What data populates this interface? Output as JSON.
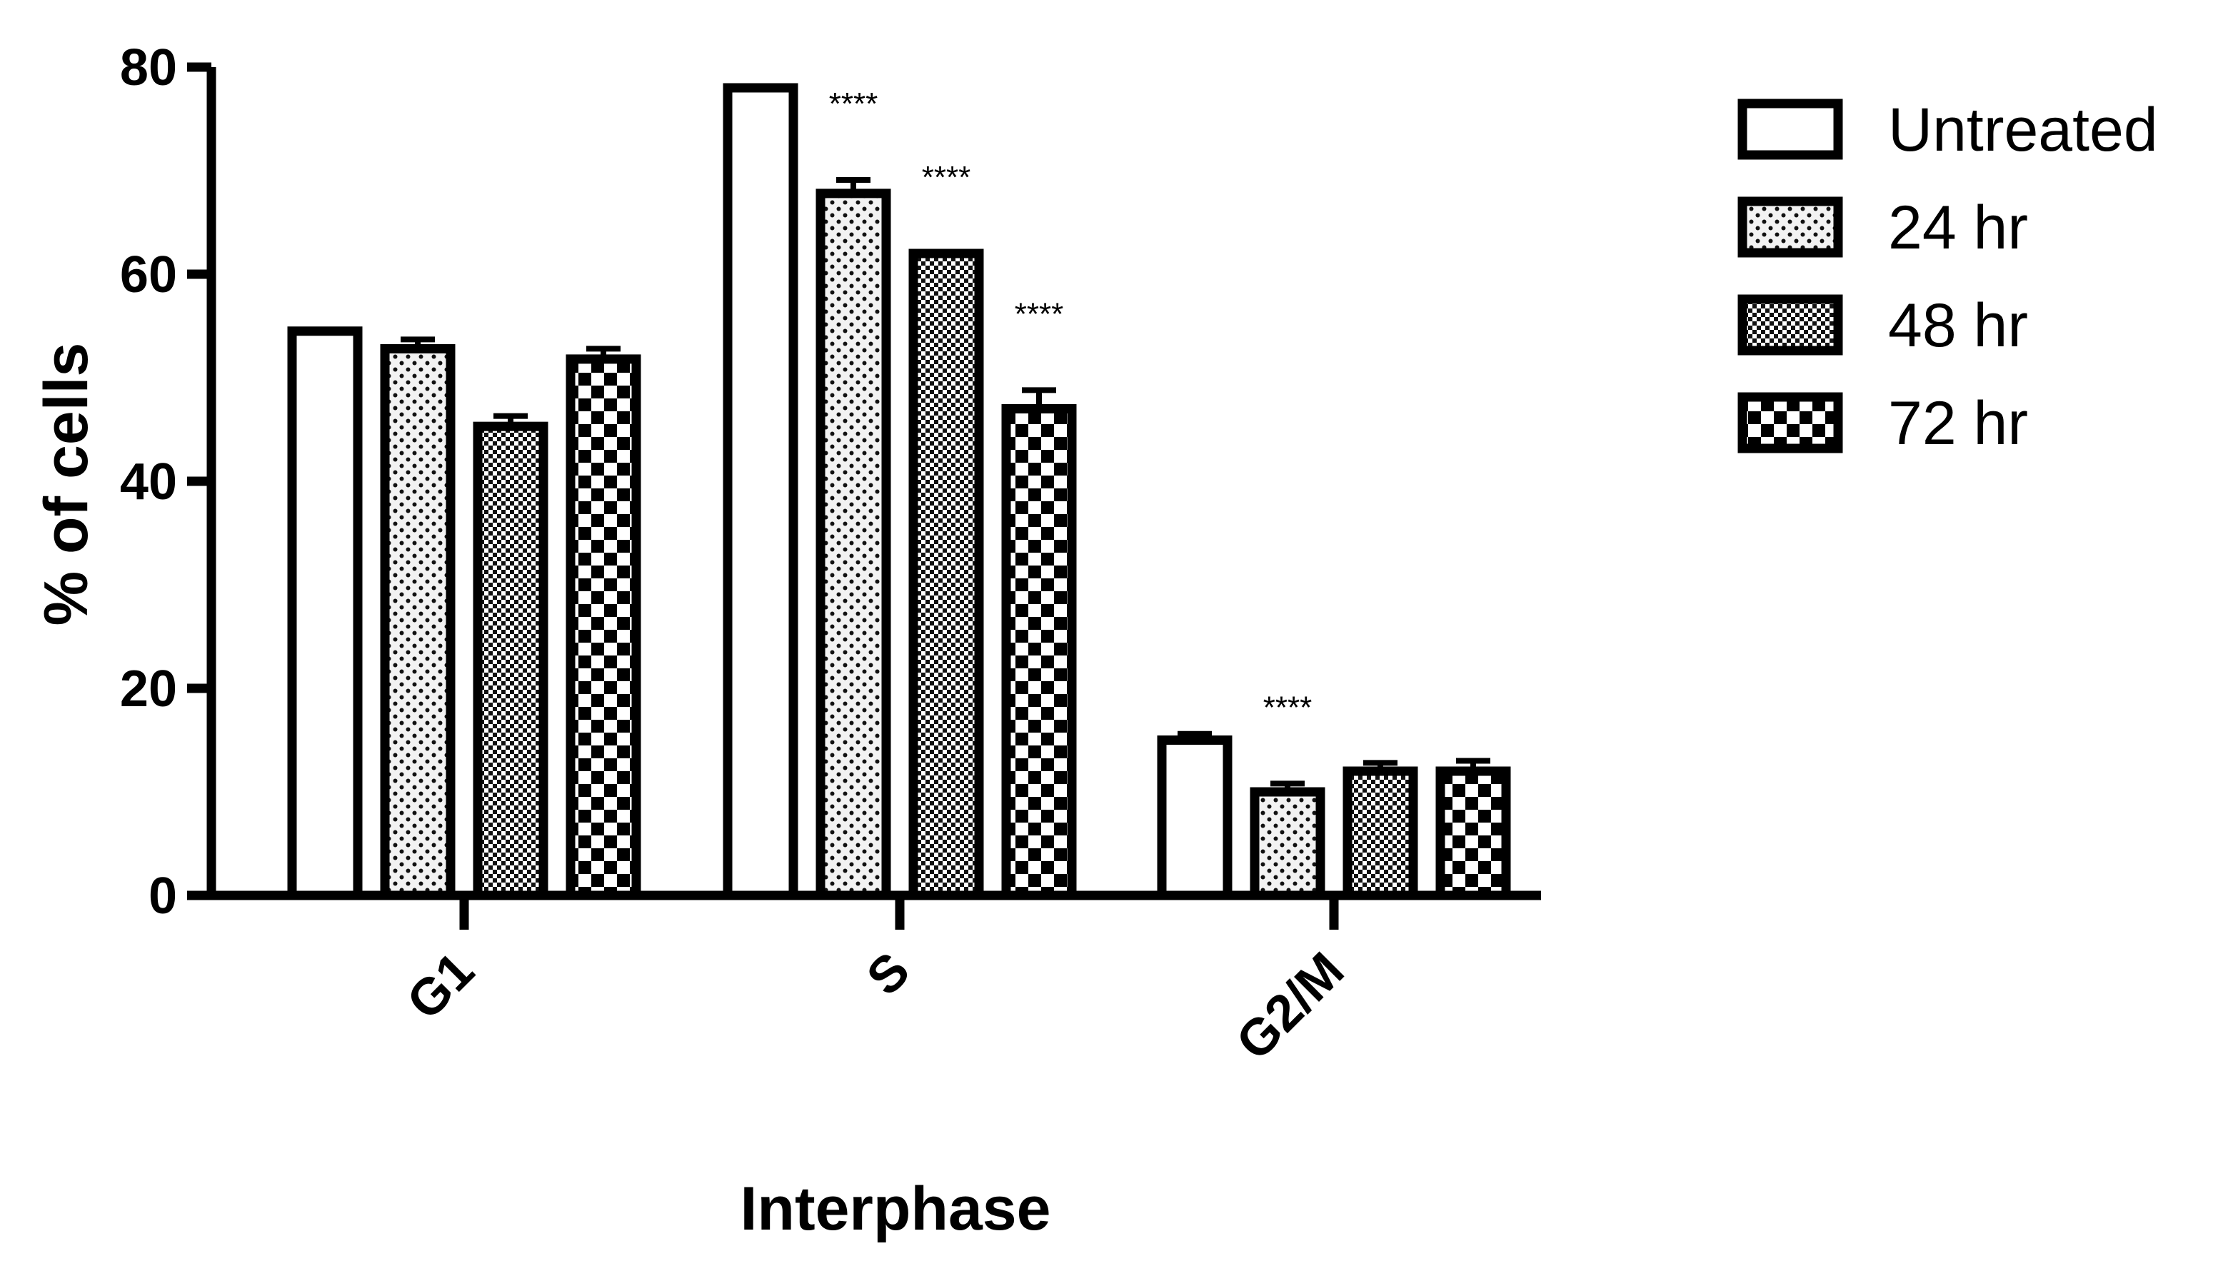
{
  "chart_data": {
    "type": "bar",
    "xlabel": "Interphase",
    "ylabel": "% of cells",
    "ylim": [
      0,
      80
    ],
    "yticks": [
      "0",
      "20",
      "40",
      "60",
      "80"
    ],
    "categories": [
      "G1",
      "S",
      "G2/M"
    ],
    "series": [
      {
        "name": "Untreated",
        "pattern": "none",
        "values": [
          54.5,
          78.0,
          15.0
        ],
        "errors": [
          0,
          0,
          0.6
        ]
      },
      {
        "name": "24 hr",
        "pattern": "dots",
        "values": [
          52.8,
          67.8,
          10.0
        ],
        "errors": [
          0.9,
          1.3,
          0.8
        ]
      },
      {
        "name": "48 hr",
        "pattern": "dense",
        "values": [
          45.3,
          62.0,
          12.0
        ],
        "errors": [
          1.0,
          0,
          0.8
        ]
      },
      {
        "name": "72 hr",
        "pattern": "checks",
        "values": [
          51.8,
          47.0,
          12.0
        ],
        "errors": [
          1.0,
          1.8,
          1.0
        ]
      }
    ],
    "annotations": [
      {
        "text": "****",
        "category": "S",
        "series": "24 hr"
      },
      {
        "text": "****",
        "category": "S",
        "series": "48 hr"
      },
      {
        "text": "****",
        "category": "S",
        "series": "72 hr"
      },
      {
        "text": "****",
        "category": "G2/M",
        "series": "24 hr"
      }
    ],
    "legend_position": "top-right",
    "grid": false,
    "colors": {
      "bar_fill": "#ffffff",
      "bar_stroke": "#000000",
      "pattern_dark": "#000000",
      "pattern_light": "#f2f2f2"
    }
  }
}
